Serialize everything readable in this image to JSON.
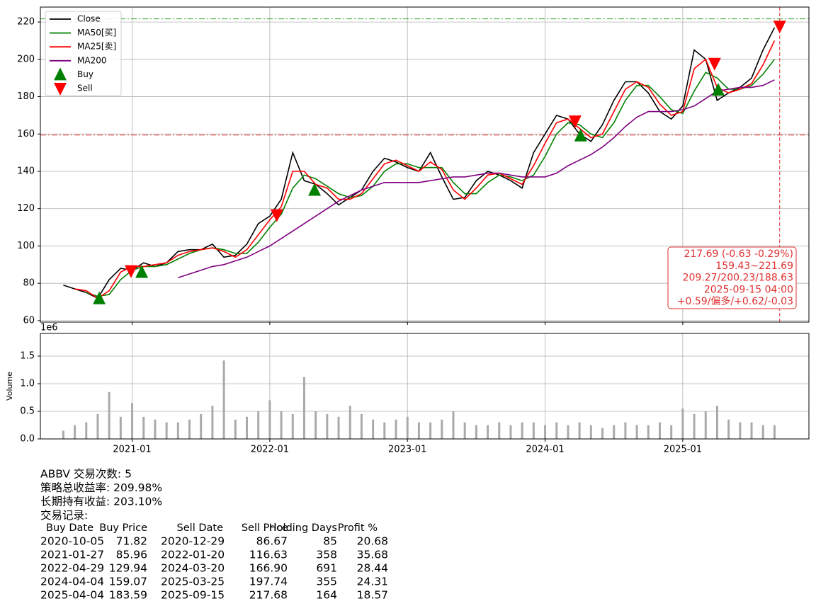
{
  "chart_data": {
    "type": "line",
    "x": [
      "2020-07",
      "2020-08",
      "2020-09",
      "2020-10",
      "2020-11",
      "2020-12",
      "2021-01",
      "2021-02",
      "2021-03",
      "2021-04",
      "2021-05",
      "2021-06",
      "2021-07",
      "2021-08",
      "2021-09",
      "2021-10",
      "2021-11",
      "2021-12",
      "2022-01",
      "2022-02",
      "2022-03",
      "2022-04",
      "2022-05",
      "2022-06",
      "2022-07",
      "2022-08",
      "2022-09",
      "2022-10",
      "2022-11",
      "2022-12",
      "2023-01",
      "2023-02",
      "2023-03",
      "2023-04",
      "2023-05",
      "2023-06",
      "2023-07",
      "2023-08",
      "2023-09",
      "2023-10",
      "2023-11",
      "2023-12",
      "2024-01",
      "2024-02",
      "2024-03",
      "2024-04",
      "2024-05",
      "2024-06",
      "2024-07",
      "2024-08",
      "2024-09",
      "2024-10",
      "2024-11",
      "2024-12",
      "2025-01",
      "2025-02",
      "2025-03",
      "2025-04",
      "2025-05",
      "2025-06",
      "2025-07",
      "2025-08",
      "2025-09"
    ],
    "series": [
      {
        "name": "Close",
        "color": "#000000",
        "values": [
          79,
          77,
          75,
          72,
          82,
          88,
          87,
          91,
          89,
          91,
          97,
          98,
          98,
          101,
          94,
          95,
          101,
          112,
          116,
          125,
          150,
          135,
          133,
          128,
          122,
          126,
          130,
          140,
          147,
          145,
          142,
          140,
          150,
          137,
          125,
          126,
          135,
          140,
          138,
          135,
          131,
          150,
          160,
          170,
          168,
          160,
          156,
          165,
          178,
          188,
          188,
          182,
          172,
          168,
          175,
          205,
          200,
          178,
          182,
          185,
          190,
          205,
          217
        ]
      },
      {
        "name": "MA50[买]",
        "color": "#008000",
        "values": [
          null,
          null,
          75,
          73,
          74,
          82,
          87,
          89,
          89,
          90,
          93,
          96,
          98,
          99,
          98,
          96,
          96,
          102,
          110,
          117,
          131,
          138,
          136,
          132,
          128,
          126,
          127,
          132,
          140,
          144,
          144,
          142,
          142,
          142,
          134,
          128,
          128,
          134,
          138,
          137,
          135,
          138,
          148,
          160,
          166,
          165,
          160,
          158,
          166,
          178,
          186,
          186,
          180,
          173,
          171,
          183,
          193,
          190,
          184,
          184,
          186,
          192,
          200
        ]
      },
      {
        "name": "MA25[卖]",
        "color": "#ff0000",
        "values": [
          null,
          77,
          76,
          72,
          76,
          86,
          89,
          89,
          90,
          91,
          95,
          97,
          98,
          99,
          97,
          94,
          98,
          106,
          114,
          121,
          140,
          140,
          133,
          131,
          125,
          125,
          128,
          136,
          144,
          146,
          143,
          140,
          145,
          141,
          130,
          125,
          131,
          138,
          139,
          136,
          133,
          143,
          155,
          166,
          168,
          163,
          158,
          160,
          172,
          184,
          188,
          185,
          176,
          170,
          172,
          195,
          200,
          185,
          182,
          184,
          187,
          197,
          210
        ]
      },
      {
        "name": "MA200",
        "color": "#800080",
        "values": [
          null,
          null,
          null,
          null,
          null,
          null,
          null,
          null,
          null,
          null,
          83,
          85,
          87,
          89,
          90,
          92,
          94,
          97,
          100,
          104,
          108,
          112,
          116,
          120,
          124,
          127,
          130,
          132,
          134,
          134,
          134,
          134,
          135,
          136,
          137,
          137,
          138,
          139,
          139,
          138,
          137,
          137,
          137,
          139,
          143,
          146,
          149,
          153,
          158,
          164,
          169,
          172,
          172,
          172,
          173,
          175,
          179,
          183,
          184,
          185,
          185,
          186,
          189
        ]
      }
    ],
    "signals": [
      {
        "name": "Buy",
        "color": "#008000"
      },
      {
        "name": "Sell",
        "color": "#ff0000"
      }
    ],
    "xlim": [
      "2020-05",
      "2025-12"
    ],
    "xticks": [
      "2021-01",
      "2022-01",
      "2023-01",
      "2024-01",
      "2025-01"
    ],
    "ylim": [
      59.2,
      228
    ],
    "yticks": [
      60,
      80,
      100,
      120,
      140,
      160,
      180,
      200,
      220
    ],
    "grid": true,
    "legend": "upper left",
    "hlines": [
      {
        "value": 159.43,
        "color": "#e03030"
      },
      {
        "value": 221.69,
        "color": "#2a9d2a"
      }
    ],
    "vline": "2025-09-15",
    "annotation": [
      "217.69 (-0.63 -0.29%)",
      "159.43~221.69",
      "209.27/200.23/188.63",
      "2025-09-15 04:00",
      "+0.59/偏多/+0.62/-0.03"
    ],
    "volume": {
      "type": "bar",
      "ylabel": "Volume",
      "offset_label": "1e6",
      "color": "#aaaaaa",
      "values": [
        0.15,
        0.25,
        0.3,
        0.45,
        0.85,
        0.4,
        0.65,
        0.4,
        0.35,
        0.3,
        0.3,
        0.35,
        0.45,
        0.6,
        1.42,
        0.35,
        0.4,
        0.5,
        0.7,
        0.5,
        0.45,
        1.12,
        0.5,
        0.45,
        0.4,
        0.6,
        0.45,
        0.35,
        0.3,
        0.35,
        0.4,
        0.3,
        0.3,
        0.35,
        0.5,
        0.3,
        0.25,
        0.25,
        0.3,
        0.25,
        0.3,
        0.3,
        0.25,
        0.3,
        0.25,
        0.3,
        0.25,
        0.2,
        0.25,
        0.3,
        0.25,
        0.25,
        0.3,
        0.25,
        0.55,
        0.45,
        0.5,
        0.6,
        0.35,
        0.3,
        0.3,
        0.25,
        0.25
      ],
      "ylim": [
        0,
        1.91
      ],
      "yticks": [
        {
          "value": 0,
          "label": "0.0"
        },
        {
          "value": 0.5,
          "label": "0.5"
        },
        {
          "value": 1,
          "label": "1.0"
        },
        {
          "value": 1.5,
          "label": "1.5"
        }
      ]
    }
  },
  "report": {
    "lines": [
      "ABBV 交易次数: 5",
      "策略总收益率: 209.98%",
      "长期持有收益: 203.10%",
      "交易记录:"
    ],
    "columns": [
      "Buy Date",
      "Buy Price",
      "Sell Date",
      "Sell Price",
      "Holding Days",
      "Profit %"
    ],
    "rows": [
      [
        "2020-10-05",
        "71.82",
        "2020-12-29",
        "86.67",
        "85",
        "20.68"
      ],
      [
        "2021-01-27",
        "85.96",
        "2022-01-20",
        "116.63",
        "358",
        "35.68"
      ],
      [
        "2022-04-29",
        "129.94",
        "2024-03-20",
        "166.90",
        "691",
        "28.44"
      ],
      [
        "2024-04-04",
        "159.07",
        "2025-03-25",
        "197.74",
        "355",
        "24.31"
      ],
      [
        "2025-04-04",
        "183.59",
        "2025-09-15",
        "217.68",
        "164",
        "18.57"
      ]
    ]
  }
}
